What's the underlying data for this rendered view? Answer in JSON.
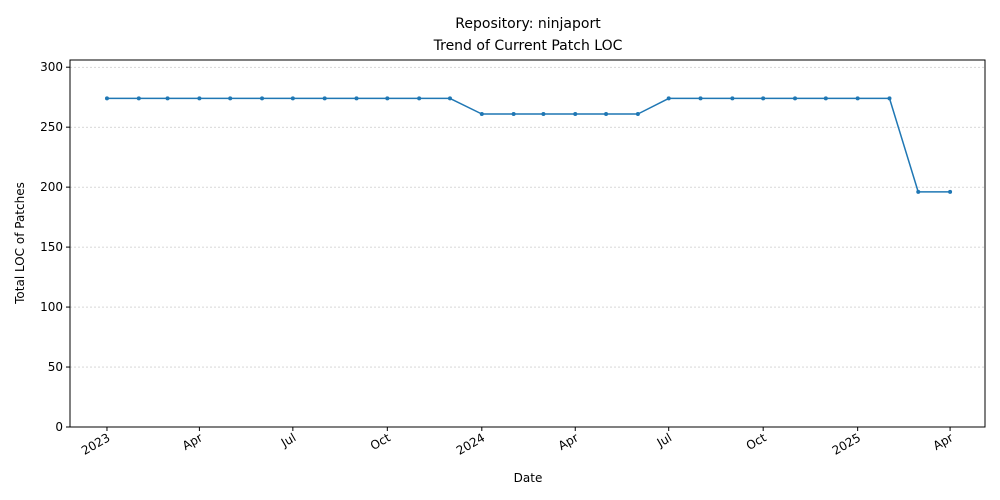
{
  "chart_data": {
    "type": "line",
    "title": "Repository: ninjaport",
    "subtitle": "Trend of Current Patch LOC",
    "xlabel": "Date",
    "ylabel": "Total LOC of Patches",
    "ylim": [
      0,
      306
    ],
    "xlim": [
      "2022-11-26",
      "2025-05-05"
    ],
    "grid": "y-only, dashed",
    "legend": "none",
    "line_color": "#1f77b4",
    "y_ticks": [
      0,
      50,
      100,
      150,
      200,
      250,
      300
    ],
    "x_ticks": [
      {
        "date": "2023-01-01",
        "label": "2023"
      },
      {
        "date": "2023-04-01",
        "label": "Apr"
      },
      {
        "date": "2023-07-01",
        "label": "Jul"
      },
      {
        "date": "2023-10-01",
        "label": "Oct"
      },
      {
        "date": "2024-01-01",
        "label": "2024"
      },
      {
        "date": "2024-04-01",
        "label": "Apr"
      },
      {
        "date": "2024-07-01",
        "label": "Jul"
      },
      {
        "date": "2024-10-01",
        "label": "Oct"
      },
      {
        "date": "2025-01-01",
        "label": "2025"
      },
      {
        "date": "2025-04-01",
        "label": "Apr"
      }
    ],
    "series": [
      {
        "x": [
          "2023-01-01",
          "2023-02-01",
          "2023-03-01",
          "2023-04-01",
          "2023-05-01",
          "2023-06-01",
          "2023-07-01",
          "2023-08-01",
          "2023-09-01",
          "2023-10-01",
          "2023-11-01",
          "2023-12-01",
          "2024-01-01",
          "2024-02-01",
          "2024-03-01",
          "2024-04-01",
          "2024-05-01",
          "2024-06-01",
          "2024-07-01",
          "2024-08-01",
          "2024-09-01",
          "2024-10-01",
          "2024-11-01",
          "2024-12-01",
          "2025-01-01",
          "2025-02-01",
          "2025-03-01",
          "2025-04-01"
        ],
        "values": [
          274,
          274,
          274,
          274,
          274,
          274,
          274,
          274,
          274,
          274,
          274,
          274,
          261,
          261,
          261,
          261,
          261,
          261,
          274,
          274,
          274,
          274,
          274,
          274,
          274,
          274,
          196,
          196
        ]
      }
    ]
  }
}
